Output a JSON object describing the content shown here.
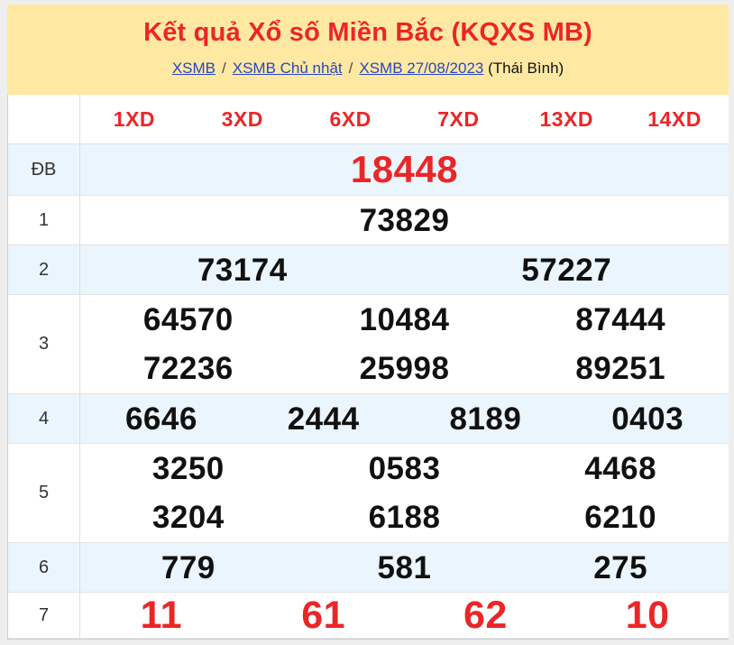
{
  "header": {
    "title": "Kết quả Xổ số Miền Bắc (KQXS MB)",
    "breadcrumb": {
      "links": [
        "XSMB",
        "XSMB Chủ nhật",
        "XSMB 27/08/2023"
      ],
      "separator": "/",
      "suffix": "(Thái Bình)"
    }
  },
  "table": {
    "columns": [
      "1XD",
      "3XD",
      "6XD",
      "7XD",
      "13XD",
      "14XD"
    ],
    "rows": [
      {
        "label": "ĐB",
        "emphasis": "special",
        "lines": [
          [
            "18448"
          ]
        ]
      },
      {
        "label": "1",
        "lines": [
          [
            "73829"
          ]
        ]
      },
      {
        "label": "2",
        "lines": [
          [
            "73174",
            "57227"
          ]
        ]
      },
      {
        "label": "3",
        "lines": [
          [
            "64570",
            "10484",
            "87444"
          ],
          [
            "72236",
            "25998",
            "89251"
          ]
        ]
      },
      {
        "label": "4",
        "lines": [
          [
            "6646",
            "2444",
            "8189",
            "0403"
          ]
        ]
      },
      {
        "label": "5",
        "lines": [
          [
            "3250",
            "0583",
            "4468"
          ],
          [
            "3204",
            "6188",
            "6210"
          ]
        ]
      },
      {
        "label": "6",
        "lines": [
          [
            "779",
            "581",
            "275"
          ]
        ]
      },
      {
        "label": "7",
        "emphasis": "red",
        "lines": [
          [
            "11",
            "61",
            "62",
            "10"
          ]
        ]
      }
    ]
  },
  "colors": {
    "accent_red": "#ec2527",
    "link_blue": "#2847c0",
    "header_yellow": "#ffe9a2",
    "row_blue": "#ebf5fd"
  }
}
